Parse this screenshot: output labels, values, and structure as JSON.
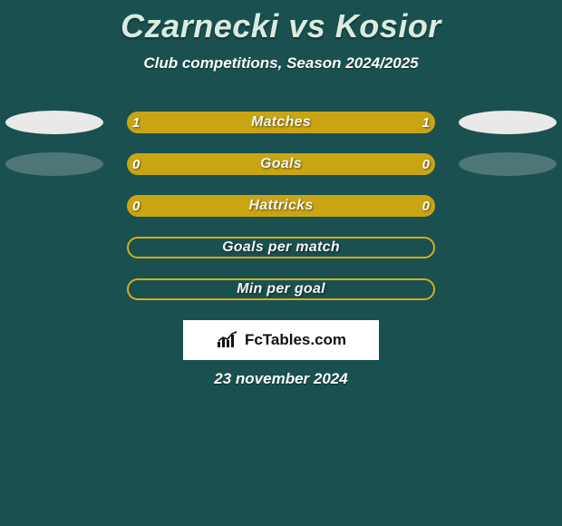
{
  "background_color": "#1b5050",
  "title_color": "#d8ece0",
  "pill_fill_color": "#c9a514",
  "pill_border_color": "#d3ae1a",
  "ellipse_color": "#e9e9e9",
  "title": "Czarnecki vs Kosior",
  "subtitle": "Club competitions, Season 2024/2025",
  "rows": [
    {
      "label": "Matches",
      "left": "1",
      "right": "1",
      "filled": true,
      "hollow": false,
      "left_ellipse": "solid",
      "right_ellipse": "solid"
    },
    {
      "label": "Goals",
      "left": "0",
      "right": "0",
      "filled": true,
      "hollow": false,
      "left_ellipse": "faded",
      "right_ellipse": "faded"
    },
    {
      "label": "Hattricks",
      "left": "0",
      "right": "0",
      "filled": true,
      "hollow": false,
      "left_ellipse": "none",
      "right_ellipse": "none"
    },
    {
      "label": "Goals per match",
      "left": "",
      "right": "",
      "filled": false,
      "hollow": true,
      "left_ellipse": "none",
      "right_ellipse": "none"
    },
    {
      "label": "Min per goal",
      "left": "",
      "right": "",
      "filled": false,
      "hollow": true,
      "left_ellipse": "none",
      "right_ellipse": "none"
    }
  ],
  "brand": "FcTables.com",
  "date": "23 november 2024",
  "chart_icon_color": "#111111",
  "row_label_fontsize": 16,
  "title_fontsize": 36,
  "subtitle_fontsize": 17
}
